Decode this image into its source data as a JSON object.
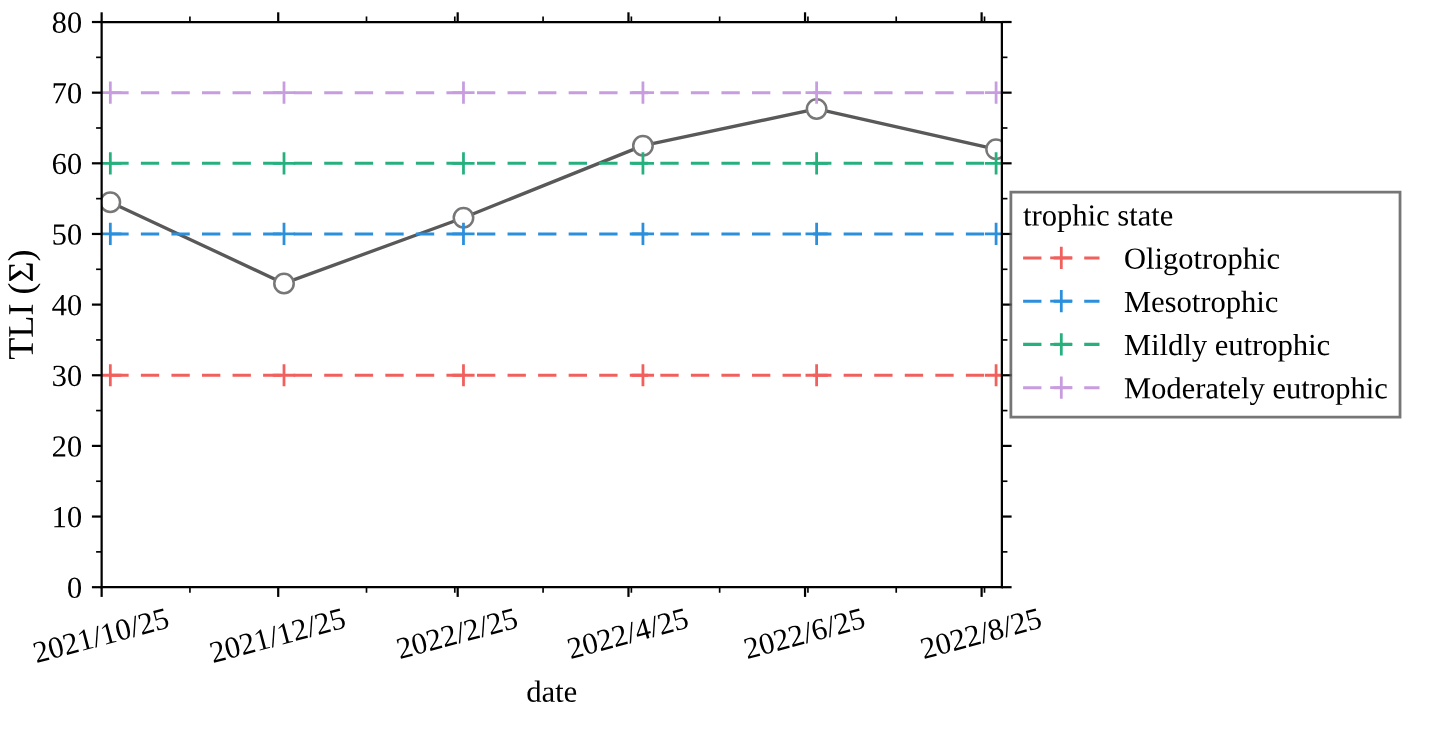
{
  "chart_data": {
    "type": "line",
    "xlabel": "date",
    "ylabel": "TLI (Σ)",
    "legend_title": "trophic state",
    "legend": "right",
    "grid": false,
    "x": [
      "2021-10-28",
      "2021-12-27",
      "2022-02-27",
      "2022-04-30",
      "2022-06-29",
      "2022-08-30"
    ],
    "xlim": [
      "2021-10-25",
      "2022-09-01"
    ],
    "xticks": [
      {
        "value": "2021-10-25",
        "label": "2021/10/25"
      },
      {
        "value": "2021-12-25",
        "label": "2021/12/25"
      },
      {
        "value": "2022-02-25",
        "label": "2022/2/25"
      },
      {
        "value": "2022-04-25",
        "label": "2022/4/25"
      },
      {
        "value": "2022-06-25",
        "label": "2022/6/25"
      },
      {
        "value": "2022-08-25",
        "label": "2022/8/25"
      }
    ],
    "ylim": [
      0,
      80
    ],
    "yticks": [
      0,
      10,
      20,
      30,
      40,
      50,
      60,
      70,
      80
    ],
    "series": [
      {
        "color": "#595959",
        "marker": "circle",
        "line_style": "solid",
        "values": [
          54.5,
          43,
          52.3,
          62.5,
          67.7,
          62
        ]
      },
      {
        "name": "Oligotrophic",
        "color": "#f0605d",
        "marker": "cross",
        "line_style": "dashed",
        "values": [
          30,
          30,
          30,
          30,
          30,
          30
        ]
      },
      {
        "name": "Mesotrophic",
        "color": "#2b8fdc",
        "marker": "cross",
        "line_style": "dashed",
        "values": [
          50,
          50,
          50,
          50,
          50,
          50
        ]
      },
      {
        "name": "Mildly eutrophic",
        "color": "#26b07e",
        "marker": "cross",
        "line_style": "dashed",
        "values": [
          60,
          60,
          60,
          60,
          60,
          60
        ]
      },
      {
        "name": "Moderately eutrophic",
        "color": "#c79de0",
        "marker": "cross",
        "line_style": "dashed",
        "values": [
          70,
          70,
          70,
          70,
          70,
          70
        ]
      }
    ]
  }
}
